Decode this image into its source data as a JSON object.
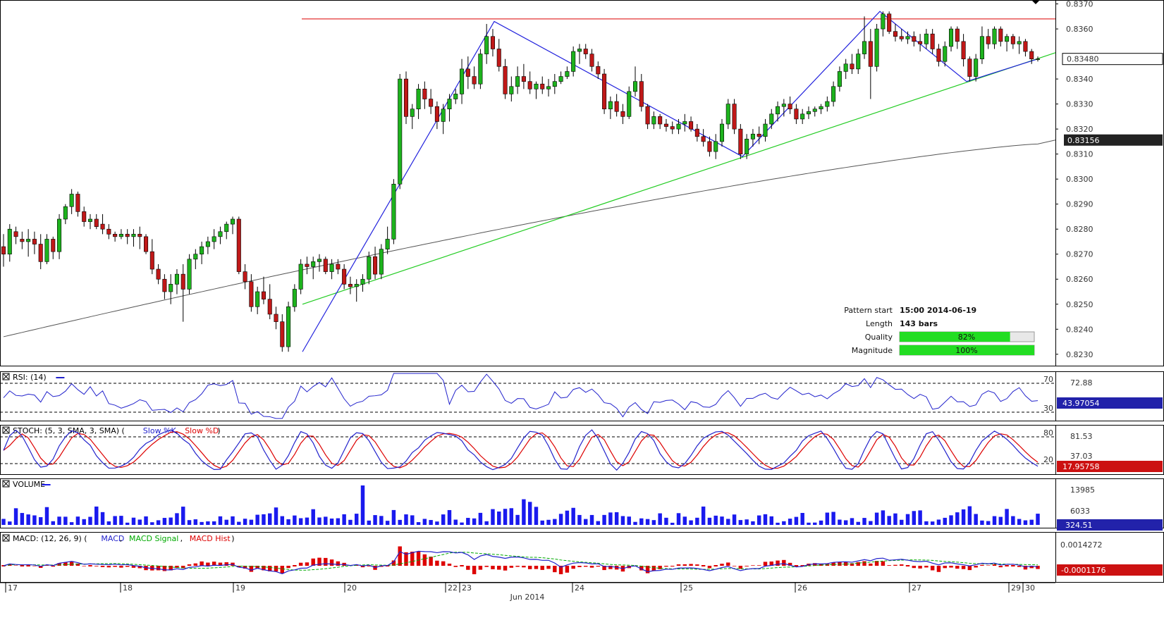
{
  "chart_data": {
    "type": "candlestick",
    "x_month_label": "Jun 2014",
    "day_labels": [
      "17",
      "18",
      "19",
      "20",
      "22",
      "23",
      "24",
      "25",
      "26",
      "27",
      "29",
      "30"
    ],
    "price_axis": {
      "ticks": [
        "0.8370",
        "0.8360",
        "0.8340",
        "0.8330",
        "0.8320",
        "0.8310",
        "0.8300",
        "0.8290",
        "0.8280",
        "0.8270",
        "0.8260",
        "0.8250",
        "0.8240",
        "0.8230"
      ],
      "ylim": [
        0.8226,
        0.8371
      ]
    },
    "price_labels": {
      "last": "0.83480",
      "ma": "0.83156"
    },
    "resistance_level": 0.8364,
    "candles_ohlc_anchor": [
      [
        0.8273,
        0.8278,
        0.8265,
        0.827
      ],
      [
        0.827,
        0.8282,
        0.8267,
        0.828
      ],
      [
        0.8279,
        0.8281,
        0.8274,
        0.8277
      ],
      [
        0.8276,
        0.8279,
        0.8272,
        0.8275
      ],
      [
        0.8275,
        0.828,
        0.8269,
        0.8276
      ],
      [
        0.8276,
        0.8279,
        0.827,
        0.8274
      ],
      [
        0.8274,
        0.8278,
        0.8264,
        0.8267
      ],
      [
        0.8267,
        0.8278,
        0.8266,
        0.8276
      ],
      [
        0.8276,
        0.8277,
        0.8268,
        0.8271
      ],
      [
        0.8271,
        0.8286,
        0.8268,
        0.8284
      ],
      [
        0.8284,
        0.829,
        0.8282,
        0.8289
      ],
      [
        0.8289,
        0.8296,
        0.8286,
        0.8294
      ],
      [
        0.8294,
        0.8295,
        0.8285,
        0.8287
      ],
      [
        0.8287,
        0.8289,
        0.8281,
        0.8283
      ],
      [
        0.8283,
        0.8286,
        0.828,
        0.8284
      ],
      [
        0.8284,
        0.8286,
        0.828,
        0.8281
      ],
      [
        0.8282,
        0.8286,
        0.8278,
        0.828
      ],
      [
        0.828,
        0.8282,
        0.8276,
        0.8278
      ],
      [
        0.8278,
        0.8279,
        0.8275,
        0.8277
      ],
      [
        0.8277,
        0.828,
        0.8276,
        0.8278
      ],
      [
        0.8278,
        0.828,
        0.8274,
        0.8277
      ],
      [
        0.8277,
        0.828,
        0.8273,
        0.8278
      ],
      [
        0.8278,
        0.8281,
        0.8272,
        0.8277
      ],
      [
        0.8277,
        0.8278,
        0.827,
        0.8271
      ],
      [
        0.8271,
        0.8276,
        0.8262,
        0.8264
      ],
      [
        0.8264,
        0.8266,
        0.8258,
        0.826
      ],
      [
        0.826,
        0.8262,
        0.8252,
        0.8255
      ],
      [
        0.8255,
        0.8262,
        0.825,
        0.8258
      ],
      [
        0.8258,
        0.8264,
        0.8254,
        0.8262
      ],
      [
        0.8262,
        0.8266,
        0.8243,
        0.8256
      ],
      [
        0.8256,
        0.827,
        0.8254,
        0.8268
      ],
      [
        0.8268,
        0.8272,
        0.8264,
        0.827
      ],
      [
        0.827,
        0.8275,
        0.8266,
        0.8273
      ],
      [
        0.8273,
        0.8277,
        0.827,
        0.8275
      ],
      [
        0.8275,
        0.828,
        0.8272,
        0.8277
      ],
      [
        0.8277,
        0.8281,
        0.8274,
        0.8279
      ],
      [
        0.8279,
        0.8283,
        0.8276,
        0.8282
      ],
      [
        0.8282,
        0.8285,
        0.8278,
        0.8284
      ],
      [
        0.8284,
        0.8285,
        0.8262,
        0.8263
      ],
      [
        0.8263,
        0.8266,
        0.8256,
        0.8259
      ],
      [
        0.8259,
        0.8262,
        0.8247,
        0.8249
      ],
      [
        0.8249,
        0.8257,
        0.8246,
        0.8255
      ],
      [
        0.8255,
        0.8261,
        0.825,
        0.8252
      ],
      [
        0.8252,
        0.8258,
        0.8244,
        0.8246
      ],
      [
        0.8246,
        0.8249,
        0.824,
        0.8243
      ],
      [
        0.8243,
        0.8246,
        0.8231,
        0.8233
      ],
      [
        0.8233,
        0.8251,
        0.8231,
        0.8249
      ],
      [
        0.8249,
        0.8258,
        0.8247,
        0.8256
      ],
      [
        0.8256,
        0.8268,
        0.8254,
        0.8266
      ],
      [
        0.8266,
        0.8269,
        0.8262,
        0.8265
      ],
      [
        0.8265,
        0.8269,
        0.826,
        0.8267
      ],
      [
        0.8267,
        0.827,
        0.8263,
        0.8268
      ],
      [
        0.8268,
        0.8269,
        0.8262,
        0.8263
      ],
      [
        0.8263,
        0.8268,
        0.826,
        0.8266
      ],
      [
        0.8266,
        0.8268,
        0.8262,
        0.8264
      ],
      [
        0.8264,
        0.8266,
        0.8256,
        0.8258
      ],
      [
        0.8258,
        0.8261,
        0.8254,
        0.8257
      ],
      [
        0.8257,
        0.826,
        0.8251,
        0.8258
      ],
      [
        0.8258,
        0.8262,
        0.8255,
        0.826
      ],
      [
        0.826,
        0.8271,
        0.8258,
        0.8269
      ],
      [
        0.8269,
        0.8273,
        0.826,
        0.8262
      ],
      [
        0.8262,
        0.8274,
        0.826,
        0.8272
      ],
      [
        0.8272,
        0.8281,
        0.827,
        0.8276
      ],
      [
        0.8276,
        0.83,
        0.8274,
        0.8298
      ],
      [
        0.8298,
        0.8342,
        0.8296,
        0.834
      ],
      [
        0.834,
        0.8343,
        0.8322,
        0.8325
      ],
      [
        0.8325,
        0.833,
        0.832,
        0.8328
      ],
      [
        0.8328,
        0.8338,
        0.8324,
        0.8336
      ],
      [
        0.8336,
        0.8339,
        0.8328,
        0.8332
      ],
      [
        0.8332,
        0.8336,
        0.8326,
        0.8329
      ],
      [
        0.8329,
        0.8331,
        0.832,
        0.8323
      ],
      [
        0.8323,
        0.833,
        0.8318,
        0.8328
      ],
      [
        0.8328,
        0.8334,
        0.8323,
        0.8332
      ],
      [
        0.8332,
        0.8336,
        0.833,
        0.8334
      ],
      [
        0.8334,
        0.8348,
        0.833,
        0.8344
      ],
      [
        0.8344,
        0.8349,
        0.8336,
        0.8341
      ],
      [
        0.8341,
        0.8345,
        0.8336,
        0.8338
      ],
      [
        0.8338,
        0.8352,
        0.8336,
        0.835
      ],
      [
        0.835,
        0.8362,
        0.8346,
        0.8357
      ],
      [
        0.8357,
        0.836,
        0.8349,
        0.8352
      ],
      [
        0.8352,
        0.8356,
        0.8343,
        0.8345
      ],
      [
        0.8345,
        0.8348,
        0.8332,
        0.8334
      ],
      [
        0.8334,
        0.8341,
        0.8331,
        0.8337
      ],
      [
        0.8337,
        0.8345,
        0.8334,
        0.8341
      ],
      [
        0.8341,
        0.8346,
        0.8336,
        0.8339
      ],
      [
        0.8339,
        0.8343,
        0.8334,
        0.8336
      ],
      [
        0.8336,
        0.8339,
        0.8332,
        0.8338
      ],
      [
        0.8338,
        0.8341,
        0.8334,
        0.8336
      ],
      [
        0.8336,
        0.834,
        0.8333,
        0.8337
      ],
      [
        0.8337,
        0.8342,
        0.8334,
        0.8339
      ],
      [
        0.8339,
        0.8343,
        0.8338,
        0.8341
      ],
      [
        0.8341,
        0.8345,
        0.834,
        0.8343
      ],
      [
        0.8343,
        0.8353,
        0.8341,
        0.8351
      ],
      [
        0.8351,
        0.8354,
        0.8346,
        0.8352
      ],
      [
        0.8352,
        0.8354,
        0.8348,
        0.835
      ],
      [
        0.835,
        0.8352,
        0.8343,
        0.8345
      ],
      [
        0.8345,
        0.8347,
        0.834,
        0.8342
      ],
      [
        0.8342,
        0.8344,
        0.8326,
        0.8328
      ],
      [
        0.8328,
        0.8333,
        0.8324,
        0.8331
      ],
      [
        0.8331,
        0.8334,
        0.8325,
        0.8327
      ],
      [
        0.8327,
        0.833,
        0.8322,
        0.8325
      ],
      [
        0.8325,
        0.8337,
        0.8324,
        0.8335
      ],
      [
        0.8335,
        0.8345,
        0.8333,
        0.8339
      ],
      [
        0.8339,
        0.8342,
        0.8327,
        0.8329
      ],
      [
        0.8329,
        0.833,
        0.832,
        0.8322
      ],
      [
        0.8322,
        0.8327,
        0.832,
        0.8325
      ],
      [
        0.8325,
        0.8326,
        0.832,
        0.8322
      ],
      [
        0.8322,
        0.8324,
        0.8319,
        0.8321
      ],
      [
        0.8321,
        0.8323,
        0.8318,
        0.832
      ],
      [
        0.832,
        0.8324,
        0.8318,
        0.8322
      ],
      [
        0.8322,
        0.8326,
        0.8319,
        0.8323
      ],
      [
        0.8323,
        0.8325,
        0.8319,
        0.832
      ],
      [
        0.832,
        0.8322,
        0.8315,
        0.8317
      ],
      [
        0.8317,
        0.832,
        0.8313,
        0.8315
      ],
      [
        0.8315,
        0.8317,
        0.8309,
        0.8311
      ],
      [
        0.8311,
        0.8318,
        0.8308,
        0.8315
      ],
      [
        0.8315,
        0.8324,
        0.8313,
        0.8322
      ],
      [
        0.8322,
        0.8332,
        0.832,
        0.833
      ],
      [
        0.833,
        0.8332,
        0.8318,
        0.832
      ],
      [
        0.832,
        0.8322,
        0.8308,
        0.831
      ],
      [
        0.831,
        0.8318,
        0.8308,
        0.8316
      ],
      [
        0.8316,
        0.832,
        0.8313,
        0.8318
      ],
      [
        0.8318,
        0.8321,
        0.8314,
        0.8317
      ],
      [
        0.8317,
        0.8324,
        0.8315,
        0.8322
      ],
      [
        0.8322,
        0.8328,
        0.832,
        0.8326
      ],
      [
        0.8326,
        0.8331,
        0.8323,
        0.8329
      ],
      [
        0.8329,
        0.8332,
        0.8325,
        0.833
      ],
      [
        0.833,
        0.8333,
        0.8326,
        0.8328
      ],
      [
        0.8328,
        0.833,
        0.8322,
        0.8324
      ],
      [
        0.8324,
        0.8328,
        0.8322,
        0.8326
      ],
      [
        0.8326,
        0.8329,
        0.8324,
        0.8327
      ],
      [
        0.8327,
        0.8329,
        0.8325,
        0.8328
      ],
      [
        0.8328,
        0.833,
        0.8326,
        0.8329
      ],
      [
        0.8329,
        0.8333,
        0.8327,
        0.8331
      ],
      [
        0.8331,
        0.8339,
        0.8329,
        0.8337
      ],
      [
        0.8337,
        0.8345,
        0.8335,
        0.8343
      ],
      [
        0.8343,
        0.8348,
        0.834,
        0.8346
      ],
      [
        0.8346,
        0.835,
        0.8342,
        0.8344
      ],
      [
        0.8344,
        0.8352,
        0.8342,
        0.835
      ],
      [
        0.835,
        0.8365,
        0.8348,
        0.8355
      ],
      [
        0.8355,
        0.836,
        0.8332,
        0.8345
      ],
      [
        0.8345,
        0.8362,
        0.8343,
        0.836
      ],
      [
        0.836,
        0.8367,
        0.8357,
        0.8366
      ],
      [
        0.8366,
        0.8367,
        0.8358,
        0.8359
      ],
      [
        0.8359,
        0.8362,
        0.8355,
        0.8357
      ],
      [
        0.8357,
        0.836,
        0.8355,
        0.8356
      ],
      [
        0.8356,
        0.8359,
        0.8354,
        0.8357
      ],
      [
        0.8357,
        0.8359,
        0.8353,
        0.8355
      ],
      [
        0.8355,
        0.8358,
        0.8351,
        0.8354
      ],
      [
        0.8354,
        0.836,
        0.8352,
        0.8358
      ],
      [
        0.8358,
        0.836,
        0.835,
        0.8352
      ],
      [
        0.8352,
        0.8354,
        0.8345,
        0.8347
      ],
      [
        0.8347,
        0.8355,
        0.8345,
        0.8353
      ],
      [
        0.8353,
        0.8361,
        0.8351,
        0.836
      ],
      [
        0.836,
        0.8361,
        0.8352,
        0.8355
      ],
      [
        0.8355,
        0.8358,
        0.8345,
        0.8348
      ],
      [
        0.8348,
        0.8349,
        0.8339,
        0.8341
      ],
      [
        0.8341,
        0.835,
        0.8339,
        0.8348
      ],
      [
        0.8348,
        0.8361,
        0.8346,
        0.8357
      ],
      [
        0.8357,
        0.836,
        0.8352,
        0.8354
      ],
      [
        0.8354,
        0.8361,
        0.8352,
        0.836
      ],
      [
        0.836,
        0.8361,
        0.8353,
        0.8355
      ],
      [
        0.8355,
        0.8358,
        0.8351,
        0.8357
      ],
      [
        0.8357,
        0.8358,
        0.8352,
        0.8354
      ],
      [
        0.8354,
        0.8357,
        0.835,
        0.8355
      ],
      [
        0.8355,
        0.8356,
        0.8349,
        0.8351
      ],
      [
        0.8351,
        0.8352,
        0.8346,
        0.8348
      ],
      [
        0.8348,
        0.8349,
        0.8347,
        0.8348
      ]
    ],
    "indicators": {
      "rsi": {
        "title": "RSI: (14)",
        "levels": [
          "70",
          "30"
        ],
        "ticks": [
          "72.88"
        ],
        "last_label": "43.97054",
        "line_color": "#2222cc"
      },
      "stoch": {
        "title": "STOCH: (5, 3, SMA, 3, SMA)",
        "legend": [
          "Slow %K",
          "Slow %D"
        ],
        "legend_colors": [
          "#2222cc",
          "#dd0000"
        ],
        "levels": [
          "80",
          "20"
        ],
        "ticks": [
          "81.53",
          "37.03"
        ],
        "last_label": "17.95758"
      },
      "volume": {
        "title": "VOLUME",
        "ticks": [
          "13985",
          "6033"
        ],
        "last_label": "324.51",
        "bar_color": "#1a1aee"
      },
      "macd": {
        "title": "MACD: (12, 26, 9)",
        "legend": [
          "MACD",
          "MACD Signal",
          "MACD Hist"
        ],
        "legend_colors": [
          "#2222cc",
          "#00aa00",
          "#dd0000"
        ],
        "ticks": [
          "0.0014272"
        ],
        "last_label": "-0.0001176"
      }
    },
    "pattern_info": {
      "pattern_start_label": "Pattern start",
      "pattern_start": "15:00 2014-06-19",
      "length_label": "Length",
      "length": "143 bars",
      "quality_label": "Quality",
      "quality": 0.82,
      "quality_text": "82%",
      "magnitude_label": "Magnitude",
      "magnitude": 1.0,
      "magnitude_text": "100%"
    },
    "colors": {
      "bull": "#1db31d",
      "bear": "#c01818",
      "resistance": "#dd0000",
      "trend": "#22cc22",
      "zigzag": "#2222dd",
      "ma": "#555555",
      "bar_fill": "#22dd22"
    }
  }
}
